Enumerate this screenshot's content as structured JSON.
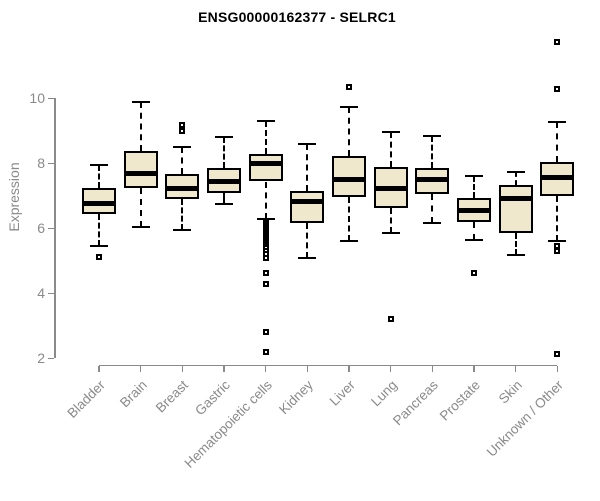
{
  "chart_data": {
    "type": "boxplot",
    "title": "ENSG00000162377 - SELRC1",
    "ylabel": "Expression",
    "xlabel": "",
    "ylim": [
      2,
      10
    ],
    "yticks": [
      2,
      4,
      6,
      8,
      10
    ],
    "grid": false,
    "legend": "none",
    "categories": [
      "Bladder",
      "Brain",
      "Breast",
      "Gastric",
      "Hematopoietic cells",
      "Kidney",
      "Liver",
      "Lung",
      "Pancreas",
      "Prostate",
      "Skin",
      "Unknown / Other"
    ],
    "series": [
      {
        "name": "Bladder",
        "low": 5.45,
        "q1": 6.45,
        "median": 6.77,
        "q3": 7.25,
        "high": 7.95,
        "outliers": [
          5.13
        ]
      },
      {
        "name": "Brain",
        "low": 6.05,
        "q1": 7.25,
        "median": 7.7,
        "q3": 8.37,
        "high": 9.9,
        "outliers": []
      },
      {
        "name": "Breast",
        "low": 5.95,
        "q1": 6.9,
        "median": 7.23,
        "q3": 7.66,
        "high": 8.5,
        "outliers": [
          9.0,
          9.18
        ]
      },
      {
        "name": "Gastric",
        "low": 6.75,
        "q1": 7.1,
        "median": 7.44,
        "q3": 7.85,
        "high": 8.8,
        "outliers": []
      },
      {
        "name": "Hematopoietic cells",
        "low": 6.28,
        "q1": 7.44,
        "median": 8.0,
        "q3": 8.28,
        "high": 9.3,
        "outliers": [
          6.15,
          6.1,
          6.05,
          6.0,
          5.95,
          5.9,
          5.85,
          5.8,
          5.75,
          5.7,
          5.65,
          5.6,
          5.55,
          5.5,
          5.45,
          5.4,
          5.3,
          5.2,
          5.1,
          4.62,
          4.28,
          2.8,
          2.2
        ]
      },
      {
        "name": "Kidney",
        "low": 5.1,
        "q1": 6.17,
        "median": 6.82,
        "q3": 7.15,
        "high": 8.6,
        "outliers": []
      },
      {
        "name": "Liver",
        "low": 5.62,
        "q1": 6.95,
        "median": 7.5,
        "q3": 8.22,
        "high": 9.74,
        "outliers": [
          10.34
        ]
      },
      {
        "name": "Lung",
        "low": 5.87,
        "q1": 6.62,
        "median": 7.23,
        "q3": 7.88,
        "high": 8.97,
        "outliers": [
          3.2
        ]
      },
      {
        "name": "Pancreas",
        "low": 6.17,
        "q1": 7.05,
        "median": 7.49,
        "q3": 7.85,
        "high": 8.85,
        "outliers": []
      },
      {
        "name": "Prostate",
        "low": 5.64,
        "q1": 6.2,
        "median": 6.56,
        "q3": 6.94,
        "high": 7.6,
        "outliers": [
          4.62
        ]
      },
      {
        "name": "Skin",
        "low": 5.18,
        "q1": 5.87,
        "median": 6.92,
        "q3": 7.33,
        "high": 7.74,
        "outliers": []
      },
      {
        "name": "Unknown / Other",
        "low": 5.6,
        "q1": 7.0,
        "median": 7.56,
        "q3": 8.05,
        "high": 9.26,
        "outliers": [
          5.45,
          5.3,
          2.12,
          10.28,
          11.72
        ]
      }
    ],
    "colors": {
      "box_fill": "#EFE8CD",
      "box_border": "#000000",
      "median": "#000000",
      "axis": "#8A8A8A",
      "text": "#8A8A8A",
      "title": "#000000",
      "background": "#FFFFFF"
    }
  }
}
